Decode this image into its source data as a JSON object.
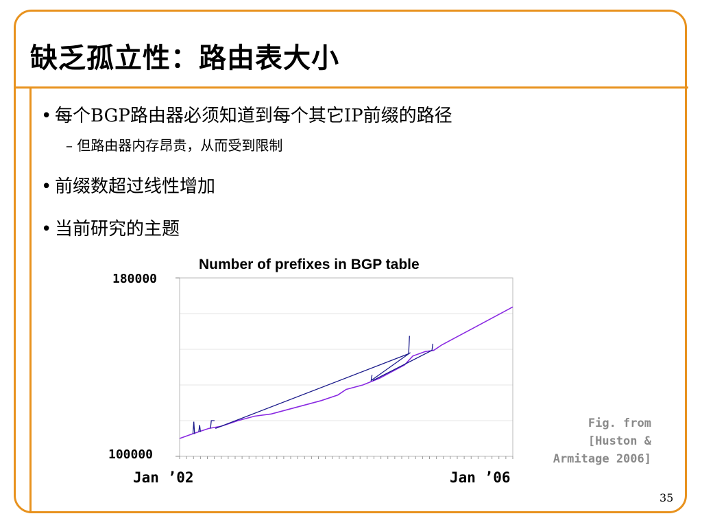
{
  "slide": {
    "title": "缺乏孤立性：路由表大小",
    "bullets": [
      {
        "text": "每个BGP路由器必须知道到每个其它IP前缀的路径"
      },
      {
        "text": "前缀数超过线性增加"
      },
      {
        "text": "当前研究的主题"
      }
    ],
    "sub_bullet": {
      "dash": "–",
      "text": "但路由器内存昂贵，从而受到限制"
    },
    "bullet_char": "•",
    "caption_lines": [
      "Fig. from",
      "[Huston &",
      "Armitage 2006]"
    ],
    "page_number": "35",
    "accent_color": "#E8921E"
  },
  "chart_data": {
    "type": "line",
    "title": "Number of prefixes in BGP table",
    "xlabel": "",
    "ylabel": "",
    "x_tick_labels": [
      "Jan ’02",
      "Jan ’06"
    ],
    "y_tick_labels": [
      "180000",
      "100000"
    ],
    "ylim": [
      100000,
      180000
    ],
    "xlim": [
      2002.0,
      2006.0
    ],
    "grid": true,
    "series": [
      {
        "color": "#8A2BE2",
        "x": [
          2002.0,
          2002.15,
          2002.35,
          2002.5,
          2002.7,
          2002.9,
          2003.1,
          2003.3,
          2003.5,
          2003.7,
          2003.9,
          2004.0,
          2004.2,
          2004.4,
          2004.55,
          2004.7,
          2004.8,
          2004.95,
          2005.05,
          2005.15,
          2005.3,
          2005.5,
          2005.7,
          2005.9,
          2006.0
        ],
        "values": [
          108000,
          110000,
          112500,
          113500,
          116000,
          118000,
          119000,
          121000,
          123000,
          125000,
          127500,
          130000,
          132000,
          135000,
          138000,
          141000,
          145000,
          147000,
          147500,
          150000,
          153000,
          157000,
          161000,
          165000,
          167000
        ]
      },
      {
        "color": "#1C1C8C",
        "x": [
          2002.16,
          2002.17,
          2002.18,
          2002.23,
          2002.24,
          2002.25,
          2002.37,
          2002.38,
          2002.42,
          2002.43,
          2004.75,
          2004.76,
          2004.77,
          2004.3,
          2004.31,
          2004.32,
          2005.03,
          2005.04,
          2005.05
        ],
        "values": [
          110000,
          115500,
          110000,
          111000,
          114000,
          111000,
          112500,
          116000,
          116000,
          112500,
          146000,
          154000,
          146500,
          134000,
          136500,
          134000,
          147500,
          150500,
          147500
        ]
      }
    ]
  }
}
